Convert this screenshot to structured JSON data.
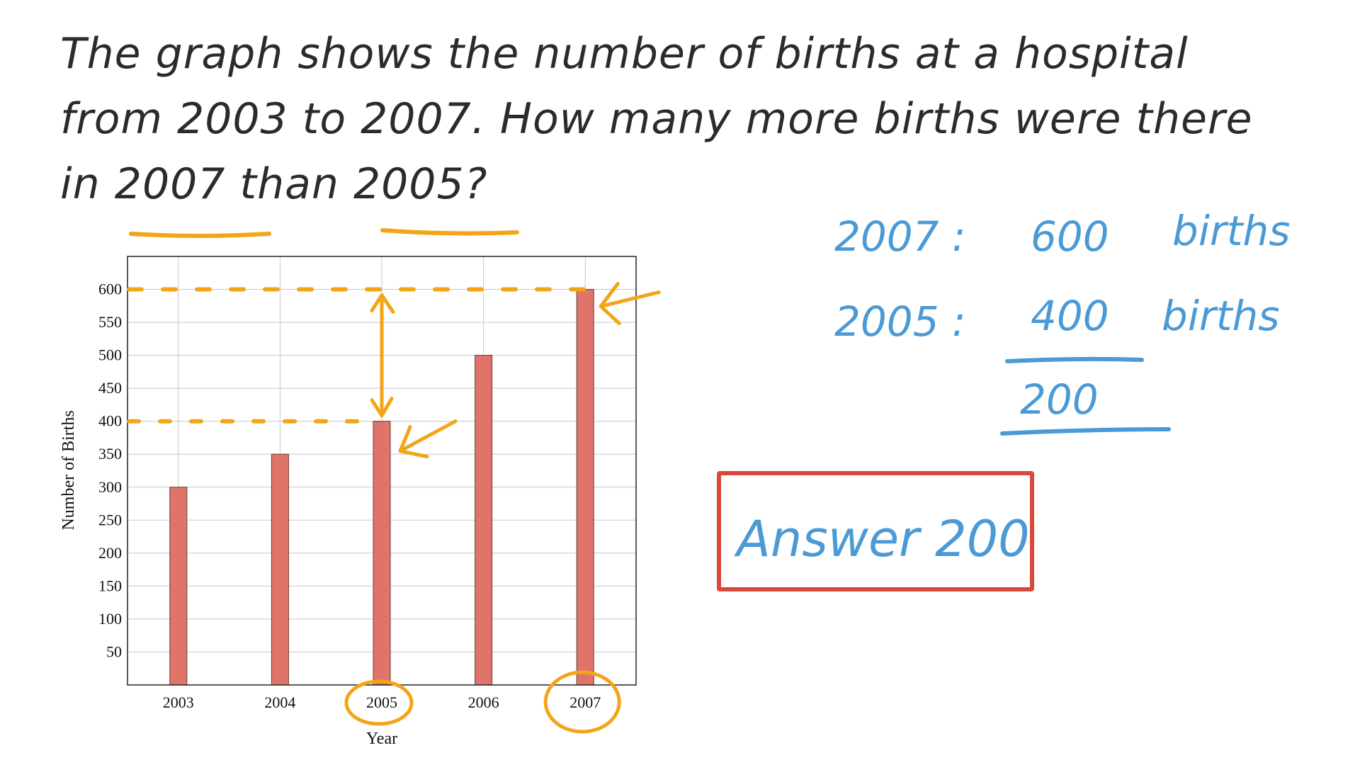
{
  "question": {
    "line1": "The graph shows the number of births at a hospital",
    "line2": "from 2003 to 2007. How many more births were there",
    "line3": "in 2007 than 2005?"
  },
  "work": {
    "row1_year": "2007 :",
    "row1_value": "600",
    "row1_unit": "births",
    "row2_year": "2005 :",
    "row2_value": "400",
    "row2_unit": "births",
    "difference": "200"
  },
  "answer": {
    "text": "Answer 200"
  },
  "colors": {
    "bar": "#e0746a",
    "annotation": "#f2a516",
    "work": "#4a9ad6",
    "answer_box": "#d9483b"
  },
  "chart_data": {
    "type": "bar",
    "categories": [
      "2003",
      "2004",
      "2005",
      "2006",
      "2007"
    ],
    "values": [
      300,
      350,
      400,
      500,
      600
    ],
    "xlabel": "Year",
    "ylabel": "Number of Births",
    "ylim": [
      0,
      650
    ],
    "yticks": [
      50,
      100,
      150,
      200,
      250,
      300,
      350,
      400,
      450,
      500,
      550,
      600
    ],
    "grid": true
  }
}
